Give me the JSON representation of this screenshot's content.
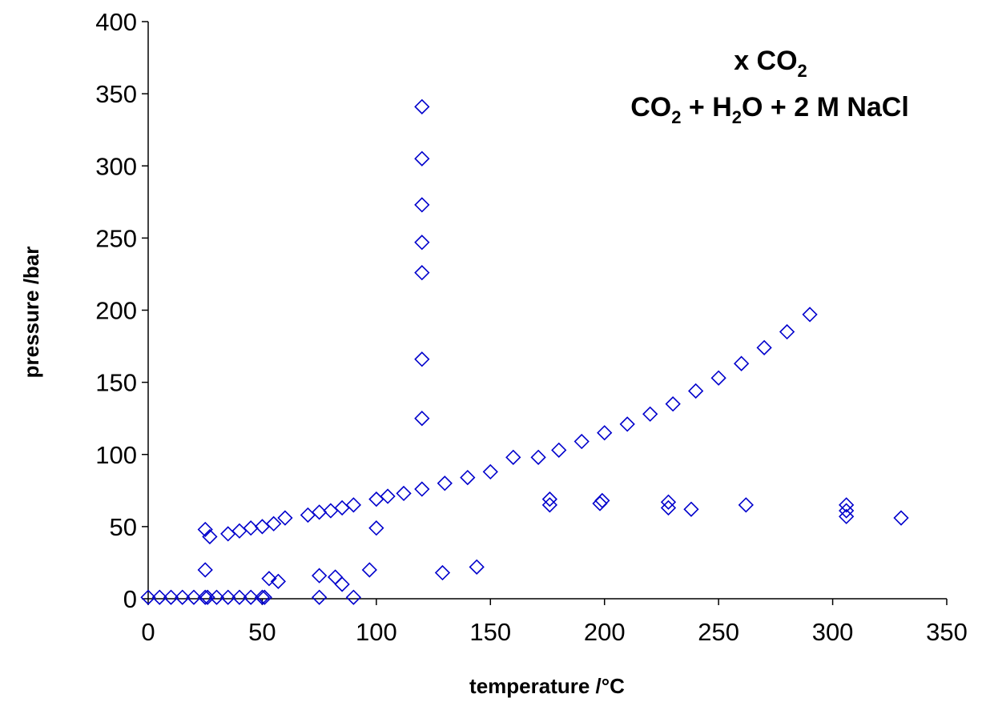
{
  "chart_data": {
    "type": "scatter",
    "title": "",
    "xlabel": "temperature /°C",
    "ylabel": "pressure /bar",
    "xlim": [
      0,
      350
    ],
    "ylim": [
      0,
      400
    ],
    "xticks": [
      0,
      50,
      100,
      150,
      200,
      250,
      300,
      350
    ],
    "yticks": [
      0,
      50,
      100,
      150,
      200,
      250,
      300,
      350,
      400
    ],
    "grid": false,
    "legend": "none",
    "annotation": {
      "line1": {
        "prefix": "x CO",
        "sub": "2"
      },
      "line2": {
        "part1": "CO",
        "sub1": "2",
        "part2": " + H",
        "sub2": "2",
        "part3": "O + 2 M NaCl"
      }
    },
    "marker": {
      "shape": "diamond",
      "color": "#0000CC"
    },
    "series": [
      {
        "points": [
          [
            0,
            1
          ],
          [
            5,
            1
          ],
          [
            10,
            1
          ],
          [
            15,
            1
          ],
          [
            20,
            1
          ],
          [
            25,
            1
          ],
          [
            26,
            1
          ],
          [
            30,
            1
          ],
          [
            35,
            1
          ],
          [
            40,
            1
          ],
          [
            45,
            1
          ],
          [
            50,
            1
          ],
          [
            51,
            1
          ],
          [
            25,
            48
          ],
          [
            27,
            43
          ],
          [
            35,
            45
          ],
          [
            40,
            47
          ],
          [
            45,
            49
          ],
          [
            50,
            50
          ],
          [
            55,
            52
          ],
          [
            60,
            56
          ],
          [
            70,
            58
          ],
          [
            75,
            60
          ],
          [
            80,
            61
          ],
          [
            85,
            63
          ],
          [
            90,
            65
          ],
          [
            25,
            20
          ],
          [
            53,
            14
          ],
          [
            57,
            12
          ],
          [
            75,
            16
          ],
          [
            82,
            15
          ],
          [
            85,
            10
          ],
          [
            75,
            1
          ],
          [
            90,
            1
          ],
          [
            97,
            20
          ],
          [
            100,
            49
          ],
          [
            100,
            69
          ],
          [
            105,
            71
          ],
          [
            112,
            73
          ],
          [
            120,
            76
          ],
          [
            130,
            80
          ],
          [
            140,
            84
          ],
          [
            150,
            88
          ],
          [
            120,
            125
          ],
          [
            120,
            166
          ],
          [
            120,
            226
          ],
          [
            120,
            247
          ],
          [
            120,
            273
          ],
          [
            120,
            305
          ],
          [
            120,
            341
          ],
          [
            129,
            18
          ],
          [
            144,
            22
          ],
          [
            160,
            98
          ],
          [
            171,
            98
          ],
          [
            180,
            103
          ],
          [
            190,
            109
          ],
          [
            200,
            115
          ],
          [
            210,
            121
          ],
          [
            220,
            128
          ],
          [
            230,
            135
          ],
          [
            240,
            144
          ],
          [
            250,
            153
          ],
          [
            260,
            163
          ],
          [
            270,
            174
          ],
          [
            280,
            185
          ],
          [
            290,
            197
          ],
          [
            176,
            65
          ],
          [
            176,
            69
          ],
          [
            198,
            66
          ],
          [
            199,
            68
          ],
          [
            228,
            63
          ],
          [
            228,
            67
          ],
          [
            238,
            62
          ],
          [
            262,
            65
          ],
          [
            306,
            57
          ],
          [
            306,
            61
          ],
          [
            306,
            65
          ],
          [
            330,
            56
          ]
        ]
      }
    ]
  }
}
